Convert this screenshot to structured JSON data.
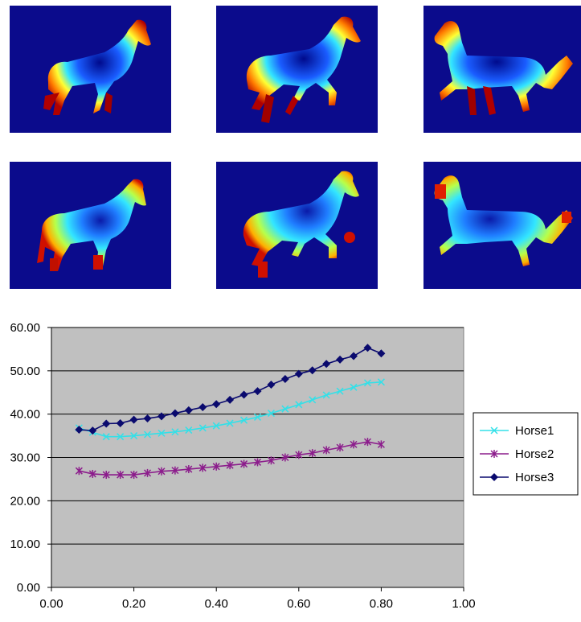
{
  "images": {
    "row1": [
      {
        "name": "horse1-distance-map"
      },
      {
        "name": "horse2-distance-map"
      },
      {
        "name": "horse3-distance-map"
      }
    ],
    "row2": [
      {
        "name": "horse1-geodesic-map"
      },
      {
        "name": "horse2-geodesic-map"
      },
      {
        "name": "horse3-geodesic-map"
      }
    ]
  },
  "chart_data": {
    "type": "line",
    "title": "",
    "xlabel": "",
    "ylabel": "",
    "xlim": [
      0,
      1
    ],
    "ylim": [
      0,
      60
    ],
    "xticks": [
      "0.00",
      "0.20",
      "0.40",
      "0.60",
      "0.80",
      "1.00"
    ],
    "yticks": [
      "0.00",
      "10.00",
      "20.00",
      "30.00",
      "40.00",
      "50.00",
      "60.00"
    ],
    "grid": true,
    "background": "#c0c0c0",
    "legend_position": "right",
    "series": [
      {
        "name": "Horse1",
        "color": "#33e0e8",
        "marker": "x",
        "x": [
          0.067,
          0.1,
          0.133,
          0.167,
          0.2,
          0.233,
          0.267,
          0.3,
          0.333,
          0.367,
          0.4,
          0.433,
          0.467,
          0.5,
          0.533,
          0.567,
          0.6,
          0.633,
          0.667,
          0.7,
          0.733,
          0.767,
          0.8
        ],
        "y": [
          36.8,
          35.8,
          34.8,
          34.8,
          35.0,
          35.3,
          35.6,
          35.9,
          36.3,
          36.8,
          37.3,
          37.9,
          38.6,
          39.3,
          40.2,
          41.2,
          42.2,
          43.3,
          44.4,
          45.3,
          46.2,
          47.2,
          47.4
        ]
      },
      {
        "name": "Horse2",
        "color": "#8c1d8c",
        "marker": "star",
        "x": [
          0.067,
          0.1,
          0.133,
          0.167,
          0.2,
          0.233,
          0.267,
          0.3,
          0.333,
          0.367,
          0.4,
          0.433,
          0.467,
          0.5,
          0.533,
          0.567,
          0.6,
          0.633,
          0.667,
          0.7,
          0.733,
          0.767,
          0.8
        ],
        "y": [
          26.9,
          26.2,
          26.0,
          26.0,
          26.0,
          26.4,
          26.8,
          27.0,
          27.3,
          27.6,
          27.9,
          28.2,
          28.5,
          28.9,
          29.3,
          30.0,
          30.6,
          31.0,
          31.7,
          32.3,
          33.0,
          33.6,
          33.0
        ]
      },
      {
        "name": "Horse3",
        "color": "#0a0a6e",
        "marker": "diamond",
        "x": [
          0.067,
          0.1,
          0.133,
          0.167,
          0.2,
          0.233,
          0.267,
          0.3,
          0.333,
          0.367,
          0.4,
          0.433,
          0.467,
          0.5,
          0.533,
          0.567,
          0.6,
          0.633,
          0.667,
          0.7,
          0.733,
          0.767,
          0.8
        ],
        "y": [
          36.4,
          36.2,
          37.8,
          37.9,
          38.7,
          39.0,
          39.5,
          40.2,
          40.9,
          41.6,
          42.3,
          43.3,
          44.5,
          45.3,
          46.8,
          48.1,
          49.3,
          50.1,
          51.6,
          52.6,
          53.4,
          55.3,
          54.0
        ]
      }
    ]
  }
}
